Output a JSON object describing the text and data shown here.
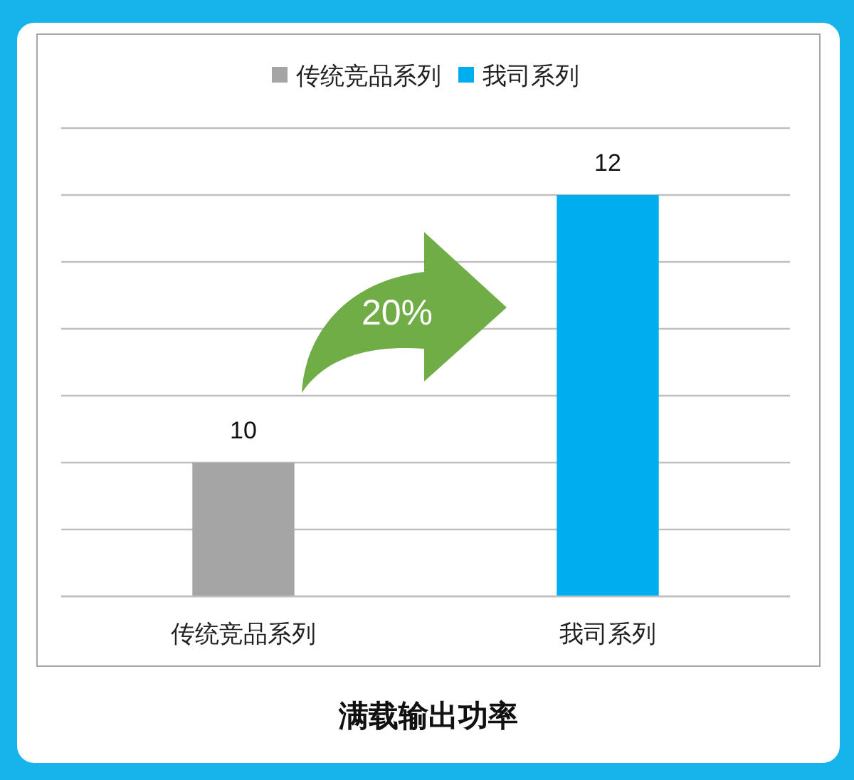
{
  "chart_data": {
    "type": "bar",
    "title": "满载输出功率",
    "categories": [
      "传统竞品系列",
      "我司系列"
    ],
    "series": [
      {
        "name": "传统竞品系列",
        "color": "#a5a5a5",
        "values": [
          10,
          null
        ]
      },
      {
        "name": "我司系列",
        "color": "#00aeef",
        "values": [
          null,
          12
        ]
      }
    ],
    "ylim": [
      9,
      12.5
    ],
    "yticks": [
      {
        "value": 9,
        "label": null
      },
      {
        "value": 9.5,
        "label": null
      },
      {
        "value": 10,
        "label": null
      },
      {
        "value": 10.5,
        "label": null
      },
      {
        "value": 11,
        "label": null
      },
      {
        "value": 11.5,
        "label": null
      },
      {
        "value": 12,
        "label": null
      },
      {
        "value": 12.5,
        "label": null
      }
    ],
    "tick_labels": "x",
    "grid": "y",
    "legend": "top",
    "data_labels": true,
    "annotations": [
      "20%"
    ]
  }
}
